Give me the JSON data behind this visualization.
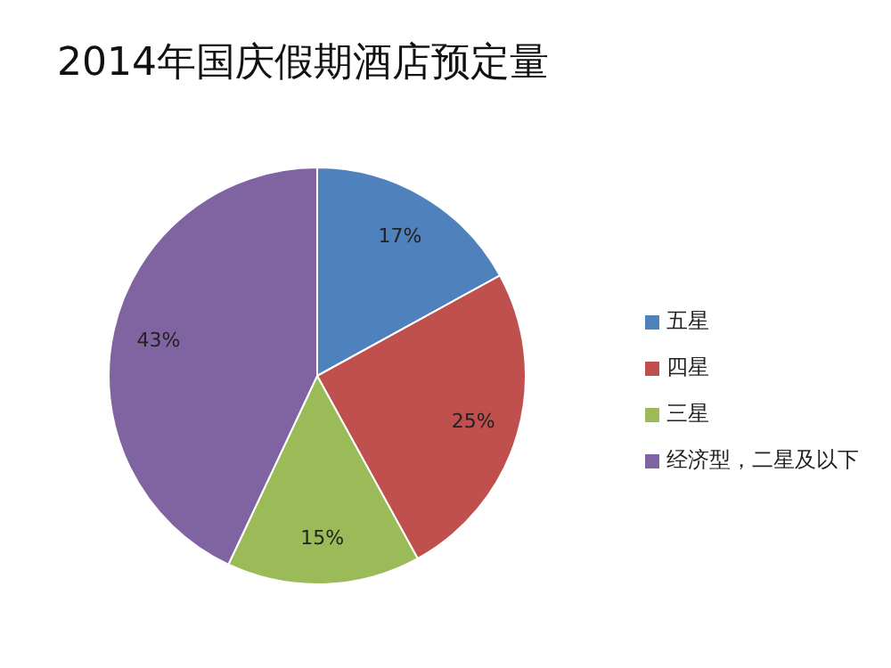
{
  "chart_data": {
    "type": "pie",
    "title": "2014年国庆假期酒店预定量",
    "categories": [
      "五星",
      "四星",
      "三星",
      "经济型，二星及以下"
    ],
    "values": [
      17,
      25,
      15,
      43
    ],
    "colors": [
      "#4f81bd",
      "#c0504d",
      "#9bbb59",
      "#8064a2"
    ],
    "value_labels": [
      "17%",
      "25%",
      "15%",
      "43%"
    ],
    "legend": "right"
  }
}
